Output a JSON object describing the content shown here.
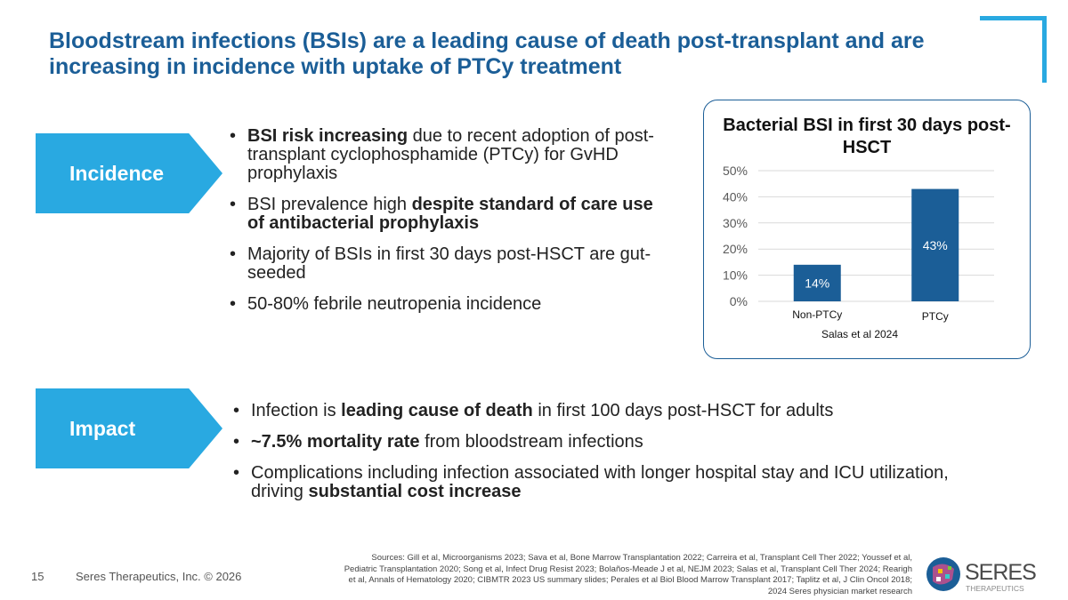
{
  "title": "Bloodstream infections (BSIs) are a leading cause of death post-transplant and are increasing in incidence with uptake of PTCy treatment",
  "sections": [
    {
      "label": "Incidence",
      "bullets": [
        [
          {
            "b": "BSI risk increasing"
          },
          {
            "t": " due to recent adoption of post-transplant cyclophosphamide (PTCy) for GvHD prophylaxis"
          }
        ],
        [
          {
            "t": "BSI prevalence high "
          },
          {
            "b": "despite standard of care use of antibacterial prophylaxis"
          }
        ],
        [
          {
            "t": "Majority of BSIs in first 30 days post-HSCT are gut-seeded"
          }
        ],
        [
          {
            "t": "50-80% febrile neutropenia incidence"
          }
        ]
      ]
    },
    {
      "label": "Impact",
      "bullets": [
        [
          {
            "t": "Infection is "
          },
          {
            "b": "leading cause of death"
          },
          {
            "t": " in first 100 days post-HSCT for adults"
          }
        ],
        [
          {
            "b": "~7.5% mortality rate"
          },
          {
            "t": " from bloodstream infections"
          }
        ],
        [
          {
            "t": "Complications including infection associated with longer hospital stay and ICU utilization, driving "
          },
          {
            "b": "substantial cost increase"
          }
        ]
      ]
    }
  ],
  "chart_data": {
    "type": "bar",
    "title": "Bacterial BSI in first 30 days post-HSCT",
    "categories": [
      "Non-PTCy",
      "PTCy"
    ],
    "values": [
      14,
      43
    ],
    "data_labels": [
      "14%",
      "43%"
    ],
    "yticks": [
      "0%",
      "10%",
      "20%",
      "30%",
      "40%",
      "50%"
    ],
    "ylim": [
      0,
      50
    ],
    "grid": true,
    "source": "Salas et al 2024",
    "bar_color": "#1b5e97"
  },
  "footer": {
    "page_number": "15",
    "copyright": "Seres Therapeutics, Inc. © 2026",
    "sources": "Sources:  Gill et al, Microorganisms 2023; Sava et al, Bone Marrow Transplantation 2022; Carreira et al, Transplant Cell Ther 2022; Youssef et al, Pediatric Transplantation 2020; Song et al, Infect Drug Resist 2023; Bolaños-Meade J et al, NEJM 2023; Salas et al, Transplant Cell Ther 2024; Rearigh et al, Annals of Hematology 2020; CIBMTR 2023 US summary slides; Perales et al Biol Blood Marrow Transplant 2017; Taplitz et al, J Clin Oncol 2018; 2024 Seres physician market research"
  },
  "logo": {
    "name": "SERES",
    "sub": "THERAPEUTICS"
  },
  "colors": {
    "title": "#1b5e97",
    "accent": "#29a9e1"
  }
}
